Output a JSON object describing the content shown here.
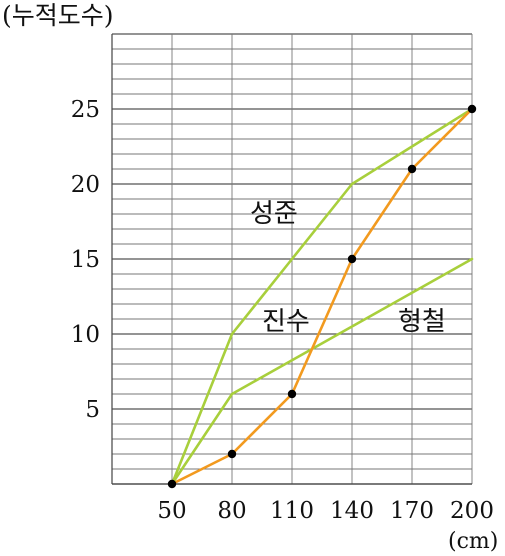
{
  "chart_data": {
    "type": "line",
    "ylabel": "(누적도수)",
    "xlabel": "(cm)",
    "x": [
      50,
      80,
      110,
      140,
      170,
      200
    ],
    "xlim": [
      20,
      200
    ],
    "ylim": [
      0,
      30
    ],
    "x_ticks": [
      "50",
      "80",
      "110",
      "140",
      "170",
      "200"
    ],
    "y_ticks": [
      "5",
      "10",
      "15",
      "20",
      "25"
    ],
    "grid": true,
    "series": [
      {
        "name": "성준",
        "color": "#a8cf3c",
        "values": [
          0,
          10,
          15,
          20,
          22.5,
          25
        ],
        "markers": false
      },
      {
        "name": "진수",
        "color": "#f29a1f",
        "values": [
          0,
          2,
          6,
          15,
          21,
          25
        ],
        "markers": true
      },
      {
        "name": "형철",
        "color": "#a8cf3c",
        "values": [
          0,
          6,
          8.25,
          10.5,
          12.75,
          15
        ],
        "markers": false
      }
    ]
  }
}
